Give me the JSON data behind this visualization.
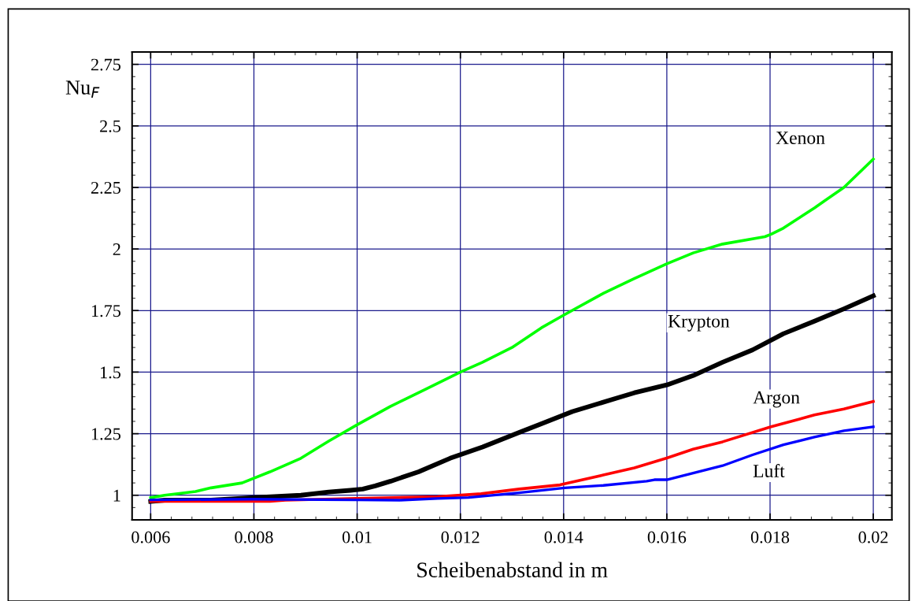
{
  "chart_data": {
    "type": "line",
    "xlabel": "Scheibenabstand in m",
    "ylabel": "Nu$_{F}$",
    "xlim": [
      0.00564,
      0.02036
    ],
    "xticks": [
      0.006,
      0.008,
      0.01,
      0.012,
      0.014,
      0.016,
      0.018,
      0.02
    ],
    "ylim": [
      0.9,
      2.8
    ],
    "yticks": [
      1,
      1.25,
      1.5,
      1.75,
      2,
      2.25,
      2.5,
      2.75
    ],
    "grid": true,
    "legend": false,
    "marker": "none",
    "line_style": "solid",
    "series": [
      {
        "name": "Xenon",
        "color": "#00ff00",
        "x": [
          0.006,
          0.00627,
          0.00687,
          0.00717,
          0.00777,
          0.00831,
          0.00891,
          0.00945,
          0.00999,
          0.01064,
          0.01132,
          0.012,
          0.01243,
          0.013,
          0.01357,
          0.01399,
          0.01477,
          0.01537,
          0.016,
          0.01651,
          0.01708,
          0.0179,
          0.01802,
          0.01826,
          0.01886,
          0.01943,
          0.02
        ],
        "values": [
          0.99,
          1.0,
          1.015,
          1.03,
          1.05,
          1.095,
          1.15,
          1.22,
          1.285,
          1.36,
          1.43,
          1.5,
          1.54,
          1.6,
          1.68,
          1.73,
          1.82,
          1.88,
          1.94,
          1.984,
          2.02,
          2.05,
          2.06,
          2.085,
          2.167,
          2.25,
          2.365
        ]
      },
      {
        "name": "Krypton",
        "color": "#000000",
        "x": [
          0.006,
          0.00627,
          0.00717,
          0.00795,
          0.00891,
          0.00945,
          0.00987,
          0.01011,
          0.01035,
          0.01065,
          0.01119,
          0.0118,
          0.01243,
          0.01314,
          0.01357,
          0.01417,
          0.01537,
          0.016,
          0.01651,
          0.01708,
          0.01766,
          0.01826,
          0.01886,
          0.01943,
          0.02
        ],
        "values": [
          0.975,
          0.98,
          0.98,
          0.99,
          1.0,
          1.013,
          1.02,
          1.025,
          1.038,
          1.057,
          1.095,
          1.15,
          1.196,
          1.255,
          1.29,
          1.34,
          1.416,
          1.448,
          1.486,
          1.54,
          1.59,
          1.656,
          1.707,
          1.757,
          1.81
        ]
      },
      {
        "name": "Argon",
        "color": "#ff0000",
        "x": [
          0.006,
          0.00831,
          0.00861,
          0.00999,
          0.01156,
          0.0124,
          0.01314,
          0.01393,
          0.01477,
          0.01537,
          0.016,
          0.01651,
          0.01708,
          0.01802,
          0.01886,
          0.01943,
          0.02
        ],
        "values": [
          0.975,
          0.975,
          0.98,
          0.987,
          0.994,
          1.006,
          1.025,
          1.042,
          1.082,
          1.111,
          1.151,
          1.187,
          1.217,
          1.278,
          1.326,
          1.35,
          1.381
        ]
      },
      {
        "name": "Luft",
        "color": "#0000ff",
        "x": [
          0.006,
          0.00795,
          0.00999,
          0.01083,
          0.01156,
          0.01216,
          0.01314,
          0.01402,
          0.01477,
          0.01561,
          0.01576,
          0.016,
          0.01651,
          0.01708,
          0.01766,
          0.01826,
          0.01886,
          0.01943,
          0.02
        ],
        "values": [
          0.981,
          0.984,
          0.981,
          0.98,
          0.987,
          0.991,
          1.01,
          1.03,
          1.04,
          1.057,
          1.063,
          1.063,
          1.09,
          1.12,
          1.164,
          1.205,
          1.236,
          1.262,
          1.278
        ]
      }
    ]
  }
}
